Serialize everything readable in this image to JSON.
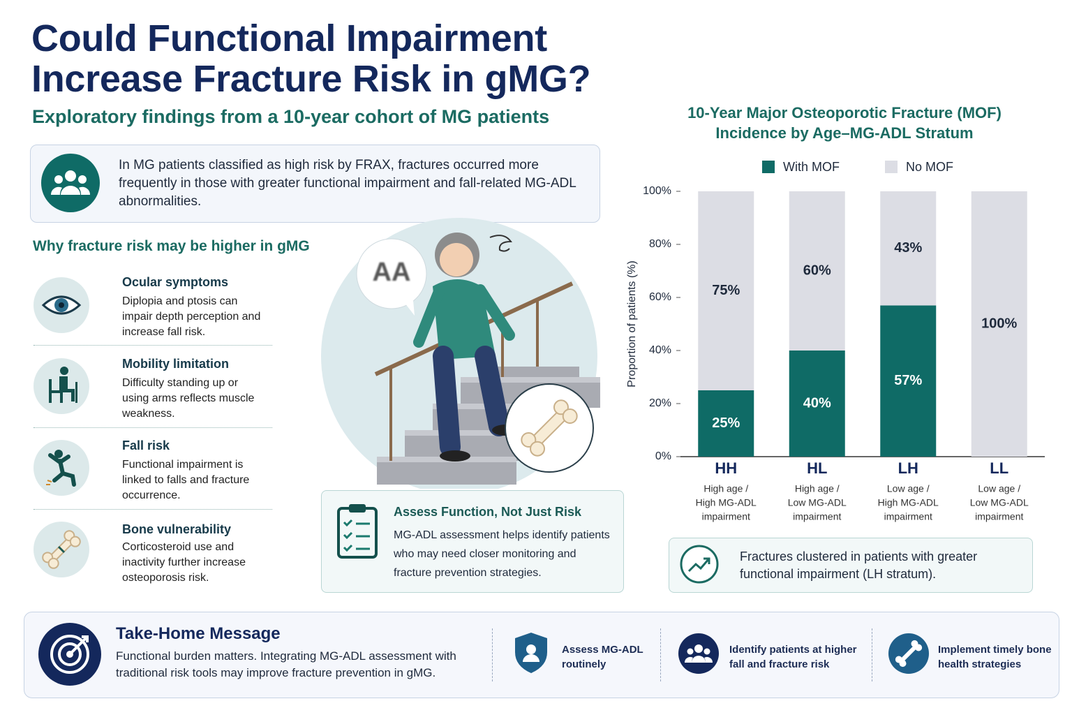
{
  "header": {
    "title": [
      "Could Functional Impairment",
      "Increase Fracture Risk in gMG?"
    ],
    "subtitle": "Exploratory findings from a 10-year cohort of MG patients"
  },
  "summary": "In MG patients classified as high risk by FRAX, fractures occurred more frequently in those with greater functional impairment and fall-related MG-ADL abnormalities.",
  "reasons": {
    "heading": "Why fracture risk may be higher in gMG",
    "items": [
      {
        "title": "Ocular symptoms",
        "text": "Diplopia and ptosis can impair depth perception and increase fall risk."
      },
      {
        "title": "Mobility limitation",
        "text": "Difficulty standing up or using arms reflects muscle weakness."
      },
      {
        "title": "Fall risk",
        "text": "Functional impairment is linked to falls and fracture occurrence."
      },
      {
        "title": "Bone vulnerability",
        "text": "Corticosteroid use and inactivity further increase osteoporosis risk."
      }
    ]
  },
  "illustration": {
    "speech": "AA"
  },
  "assess": {
    "title": "Assess Function, Not Just Risk",
    "text": "MG-ADL assessment helps identify patients who may need closer monitoring and fracture prevention strategies."
  },
  "chart_data": {
    "type": "stacked_bar",
    "title": [
      "10-Year Major Osteoporotic Fracture (MOF)",
      "Incidence by Age–MG-ADL Stratum"
    ],
    "ylabel": "Proportion of patients (%)",
    "categories": [
      "HH",
      "HL",
      "LH",
      "LL"
    ],
    "category_descriptions": [
      [
        "High age /",
        "High MG-ADL",
        "impairment"
      ],
      [
        "High age /",
        "Low MG-ADL",
        "impairment"
      ],
      [
        "Low age /",
        "High MG-ADL",
        "impairment"
      ],
      [
        "Low age /",
        "Low MG-ADL",
        "impairment"
      ]
    ],
    "series": [
      {
        "name": "With MOF",
        "color": "#0f6b66",
        "values": [
          25,
          40,
          57,
          0
        ],
        "value_labels": [
          "25%",
          "40%",
          "57%",
          null
        ]
      },
      {
        "name": "No MOF",
        "color": "#dcdde4",
        "values": [
          75,
          60,
          43,
          100
        ],
        "value_labels": [
          "75%",
          "60%",
          "43%",
          "100%"
        ]
      }
    ],
    "ylim": [
      0,
      100
    ],
    "yticks": [
      {
        "value": 0,
        "label": "0%"
      },
      {
        "value": 20,
        "label": "20%"
      },
      {
        "value": 40,
        "label": "40%"
      },
      {
        "value": 60,
        "label": "60%"
      },
      {
        "value": 80,
        "label": "80%"
      },
      {
        "value": 100,
        "label": "100%"
      }
    ],
    "legend": "top",
    "callout": "Fractures clustered in patients with greater functional impairment (LH stratum)."
  },
  "takehome": {
    "title": "Take-Home Message",
    "text": "Functional burden matters. Integrating MG-ADL assessment with traditional risk tools may improve fracture prevention in gMG.",
    "actions": [
      "Assess MG-ADL routinely",
      "Identify patients at higher fall and fracture risk",
      "Implement timely bone health strategies"
    ]
  }
}
